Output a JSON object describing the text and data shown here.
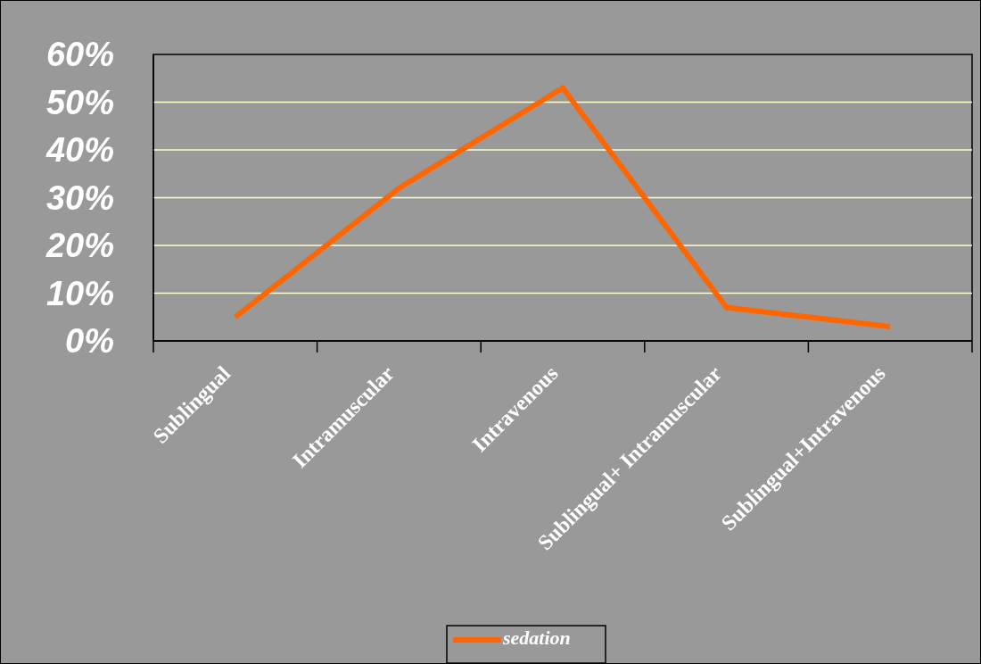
{
  "chart_data": {
    "type": "line",
    "categories": [
      "Sublingual",
      "Intramuscular",
      "Intravenous",
      "Sublingual+ Intramuscular",
      "Sublingual+Intravenous"
    ],
    "series": [
      {
        "name": "sedation",
        "color": "#ff6600",
        "values": [
          0.05,
          0.32,
          0.53,
          0.07,
          0.03
        ]
      }
    ],
    "ylim": [
      0,
      0.6
    ],
    "yticks": [
      {
        "value": 0,
        "label": "0%"
      },
      {
        "value": 0.1,
        "label": "10%"
      },
      {
        "value": 0.2,
        "label": "20%"
      },
      {
        "value": 0.3,
        "label": "30%"
      },
      {
        "value": 0.4,
        "label": "40%"
      },
      {
        "value": 0.5,
        "label": "50%"
      },
      {
        "value": 0.6,
        "label": "60%"
      }
    ],
    "grid": "y",
    "legend": "bottom",
    "marker": "none",
    "line_style": "solid"
  }
}
